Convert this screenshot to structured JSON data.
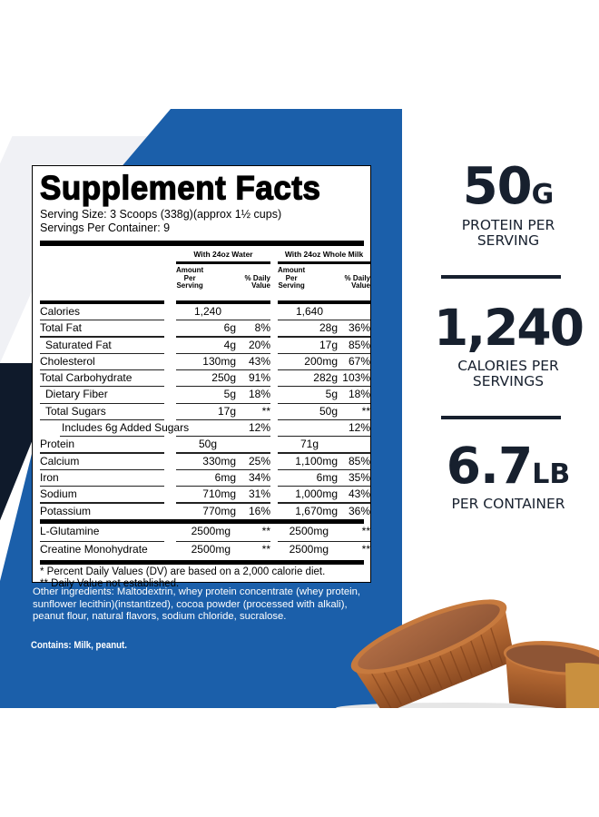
{
  "colors": {
    "panel_blue": "#1b5faa",
    "navy": "#0f1a2b",
    "stat_text": "#17202e"
  },
  "label": {
    "title": "Supplement Facts",
    "serving_size": "Serving Size: 3 Scoops (338g)(approx 1½ cups)",
    "servings_per_container": "Servings Per Container: 9",
    "groups": [
      {
        "title": "With 24oz Water",
        "amount_header": "Amount Per Serving",
        "dv_header": "% Daily Value"
      },
      {
        "title": "With 24oz Whole Milk",
        "amount_header": "Amount Per Serving",
        "dv_header": "% Daily Value"
      }
    ],
    "rows": [
      {
        "name": "Calories",
        "indent": 0,
        "water_amt": "1,240",
        "water_dv": "",
        "milk_amt": "1,640",
        "milk_dv": ""
      },
      {
        "name": "Total Fat",
        "indent": 0,
        "water_amt": "6g",
        "water_dv": "8%",
        "milk_amt": "28g",
        "milk_dv": "36%"
      },
      {
        "name": "Saturated Fat",
        "indent": 1,
        "water_amt": "4g",
        "water_dv": "20%",
        "milk_amt": "17g",
        "milk_dv": "85%"
      },
      {
        "name": "Cholesterol",
        "indent": 0,
        "water_amt": "130mg",
        "water_dv": "43%",
        "milk_amt": "200mg",
        "milk_dv": "67%"
      },
      {
        "name": "Total Carbohydrate",
        "indent": 0,
        "water_amt": "250g",
        "water_dv": "91%",
        "milk_amt": "282g",
        "milk_dv": "103%"
      },
      {
        "name": "Dietary Fiber",
        "indent": 1,
        "water_amt": "5g",
        "water_dv": "18%",
        "milk_amt": "5g",
        "milk_dv": "18%"
      },
      {
        "name": "Total Sugars",
        "indent": 1,
        "water_amt": "17g",
        "water_dv": "**",
        "milk_amt": "50g",
        "milk_dv": "**"
      },
      {
        "name": "Includes 6g Added Sugars",
        "indent": 2,
        "water_amt": "",
        "water_dv": "12%",
        "milk_amt": "",
        "milk_dv": "12%"
      },
      {
        "name": "Protein",
        "indent": 0,
        "water_amt": "50g",
        "water_dv": "",
        "milk_amt": "71g",
        "milk_dv": ""
      },
      {
        "name": "Calcium",
        "indent": 0,
        "water_amt": "330mg",
        "water_dv": "25%",
        "milk_amt": "1,100mg",
        "milk_dv": "85%"
      },
      {
        "name": "Iron",
        "indent": 0,
        "water_amt": "6mg",
        "water_dv": "34%",
        "milk_amt": "6mg",
        "milk_dv": "35%"
      },
      {
        "name": "Sodium",
        "indent": 0,
        "water_amt": "710mg",
        "water_dv": "31%",
        "milk_amt": "1,000mg",
        "milk_dv": "43%"
      },
      {
        "name": "Potassium",
        "indent": 0,
        "water_amt": "770mg",
        "water_dv": "16%",
        "milk_amt": "1,670mg",
        "milk_dv": "36%"
      },
      {
        "name": "L-Glutamine",
        "indent": 0,
        "water_amt": "2500mg",
        "water_dv": "**",
        "milk_amt": "2500mg",
        "milk_dv": "**"
      },
      {
        "name": "Creatine Monohydrate",
        "indent": 0,
        "water_amt": "2500mg",
        "water_dv": "**",
        "milk_amt": "2500mg",
        "milk_dv": "**"
      }
    ],
    "footnote_1": "* Percent Daily Values (DV) are based on a 2,000 calorie diet.",
    "footnote_2": "** Daily Value not established."
  },
  "other_ingredients": "Other ingredients: Maltodextrin, whey protein concentrate (whey protein, sunflower lecithin)(instantized), cocoa powder (processed with alkali), peanut flour, natural flavors, sodium chloride, sucralose.",
  "contains": "Contains: Milk, peanut.",
  "stats": [
    {
      "value": "50",
      "unit": "G",
      "caption_1": "PROTEIN PER",
      "caption_2": "SERVING"
    },
    {
      "value": "1,240",
      "unit": "",
      "caption_1": "CALORIES PER",
      "caption_2": "SERVINGS"
    },
    {
      "value": "6.7",
      "unit": "LB",
      "caption_1": "PER CONTAINER",
      "caption_2": ""
    }
  ],
  "image": {
    "subject": "peanut-butter-cups"
  }
}
